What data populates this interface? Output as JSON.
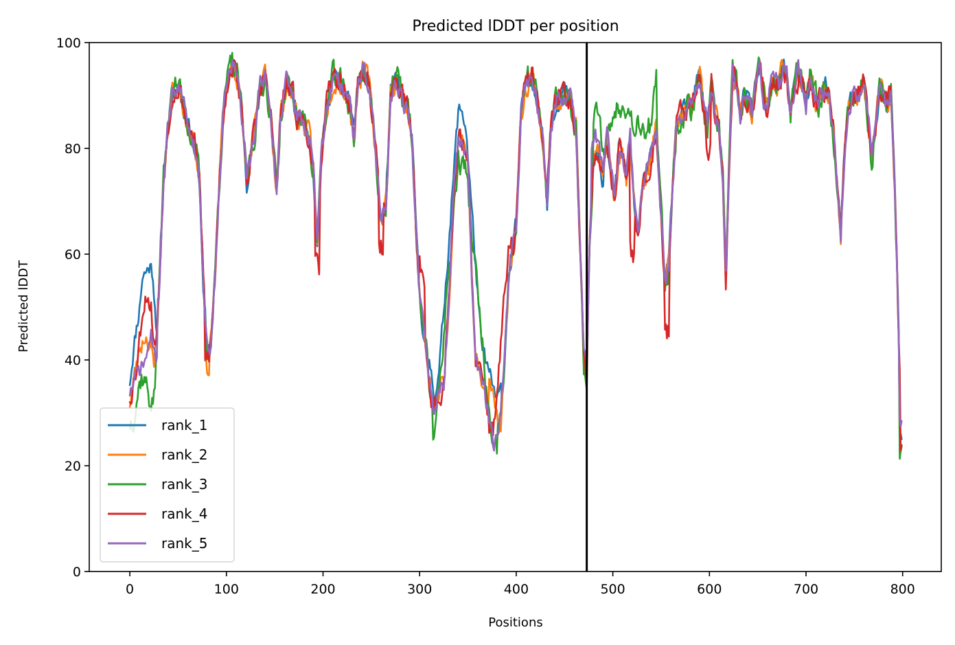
{
  "chart_data": {
    "type": "line",
    "title": "Predicted lDDT per position",
    "xlabel": "Positions",
    "ylabel": "Predicted lDDT",
    "xlim": [
      -42,
      840
    ],
    "ylim": [
      0,
      100
    ],
    "xticks": [
      0,
      100,
      200,
      300,
      400,
      500,
      600,
      700,
      800
    ],
    "yticks": [
      0,
      20,
      40,
      60,
      80,
      100
    ],
    "grid": false,
    "legend_position": "lower-left",
    "vline": {
      "x": 473,
      "color": "#000000"
    },
    "base_profile": [
      [
        0,
        34
      ],
      [
        10,
        40
      ],
      [
        20,
        44
      ],
      [
        25,
        38
      ],
      [
        30,
        52
      ],
      [
        35,
        75
      ],
      [
        40,
        85
      ],
      [
        45,
        92
      ],
      [
        52,
        91
      ],
      [
        58,
        86
      ],
      [
        62,
        84
      ],
      [
        68,
        80
      ],
      [
        72,
        74
      ],
      [
        76,
        55
      ],
      [
        80,
        42
      ],
      [
        84,
        43
      ],
      [
        88,
        55
      ],
      [
        92,
        72
      ],
      [
        96,
        85
      ],
      [
        100,
        92
      ],
      [
        106,
        96
      ],
      [
        112,
        93
      ],
      [
        118,
        82
      ],
      [
        121,
        74
      ],
      [
        126,
        80
      ],
      [
        130,
        84
      ],
      [
        135,
        91
      ],
      [
        140,
        94
      ],
      [
        146,
        86
      ],
      [
        152,
        72
      ],
      [
        156,
        86
      ],
      [
        162,
        92
      ],
      [
        168,
        90
      ],
      [
        174,
        86
      ],
      [
        180,
        85
      ],
      [
        186,
        82
      ],
      [
        190,
        76
      ],
      [
        194,
        62
      ],
      [
        198,
        78
      ],
      [
        204,
        88
      ],
      [
        210,
        93
      ],
      [
        216,
        93
      ],
      [
        222,
        91
      ],
      [
        228,
        88
      ],
      [
        232,
        82
      ],
      [
        236,
        92
      ],
      [
        242,
        95
      ],
      [
        248,
        92
      ],
      [
        252,
        84
      ],
      [
        256,
        76
      ],
      [
        260,
        66
      ],
      [
        265,
        70
      ],
      [
        270,
        90
      ],
      [
        276,
        93
      ],
      [
        282,
        90
      ],
      [
        288,
        87
      ],
      [
        292,
        82
      ],
      [
        296,
        66
      ],
      [
        300,
        52
      ],
      [
        305,
        44
      ],
      [
        310,
        36
      ],
      [
        314,
        30
      ],
      [
        320,
        34
      ],
      [
        325,
        36
      ],
      [
        330,
        50
      ],
      [
        335,
        70
      ],
      [
        340,
        83
      ],
      [
        345,
        82
      ],
      [
        350,
        78
      ],
      [
        354,
        55
      ],
      [
        358,
        40
      ],
      [
        364,
        36
      ],
      [
        368,
        33
      ],
      [
        372,
        29
      ],
      [
        376,
        24
      ],
      [
        380,
        25
      ],
      [
        384,
        30
      ],
      [
        388,
        40
      ],
      [
        392,
        55
      ],
      [
        396,
        60
      ],
      [
        400,
        66
      ],
      [
        405,
        86
      ],
      [
        410,
        92
      ],
      [
        416,
        94
      ],
      [
        420,
        91
      ],
      [
        424,
        86
      ],
      [
        428,
        80
      ],
      [
        432,
        70
      ],
      [
        436,
        84
      ],
      [
        440,
        88
      ],
      [
        445,
        90
      ],
      [
        450,
        91
      ],
      [
        456,
        89
      ],
      [
        462,
        84
      ],
      [
        466,
        62
      ],
      [
        470,
        40
      ],
      [
        473,
        38
      ],
      [
        476,
        62
      ],
      [
        480,
        76
      ],
      [
        486,
        79
      ],
      [
        490,
        76
      ],
      [
        494,
        82
      ],
      [
        498,
        76
      ],
      [
        502,
        70
      ],
      [
        506,
        80
      ],
      [
        510,
        80
      ],
      [
        514,
        74
      ],
      [
        518,
        82
      ],
      [
        522,
        70
      ],
      [
        526,
        64
      ],
      [
        530,
        72
      ],
      [
        536,
        76
      ],
      [
        540,
        79
      ],
      [
        545,
        84
      ],
      [
        550,
        68
      ],
      [
        554,
        54
      ],
      [
        558,
        58
      ],
      [
        562,
        74
      ],
      [
        566,
        85
      ],
      [
        572,
        86
      ],
      [
        578,
        88
      ],
      [
        582,
        87
      ],
      [
        586,
        92
      ],
      [
        590,
        94
      ],
      [
        594,
        88
      ],
      [
        598,
        84
      ],
      [
        602,
        92
      ],
      [
        606,
        86
      ],
      [
        610,
        84
      ],
      [
        614,
        74
      ],
      [
        617,
        56
      ],
      [
        620,
        74
      ],
      [
        624,
        94
      ],
      [
        628,
        92
      ],
      [
        632,
        86
      ],
      [
        636,
        90
      ],
      [
        640,
        89
      ],
      [
        644,
        86
      ],
      [
        648,
        91
      ],
      [
        652,
        95
      ],
      [
        656,
        90
      ],
      [
        660,
        88
      ],
      [
        664,
        92
      ],
      [
        668,
        93
      ],
      [
        672,
        92
      ],
      [
        676,
        95
      ],
      [
        680,
        94
      ],
      [
        684,
        86
      ],
      [
        688,
        92
      ],
      [
        692,
        94
      ],
      [
        696,
        92
      ],
      [
        700,
        88
      ],
      [
        704,
        93
      ],
      [
        708,
        90
      ],
      [
        712,
        88
      ],
      [
        716,
        90
      ],
      [
        720,
        92
      ],
      [
        724,
        90
      ],
      [
        728,
        84
      ],
      [
        732,
        74
      ],
      [
        736,
        64
      ],
      [
        740,
        80
      ],
      [
        744,
        88
      ],
      [
        748,
        90
      ],
      [
        752,
        90
      ],
      [
        756,
        91
      ],
      [
        760,
        93
      ],
      [
        764,
        86
      ],
      [
        768,
        78
      ],
      [
        772,
        84
      ],
      [
        776,
        91
      ],
      [
        780,
        90
      ],
      [
        784,
        88
      ],
      [
        788,
        91
      ],
      [
        792,
        72
      ],
      [
        796,
        44
      ],
      [
        799,
        28
      ]
    ],
    "series": [
      {
        "name": "rank_1",
        "color": "#1f77b4",
        "amp": 1.5,
        "seed": 11,
        "overrides": [
          [
            0,
            36
          ],
          [
            3,
            41
          ],
          [
            6,
            45
          ],
          [
            10,
            50
          ],
          [
            13,
            56
          ],
          [
            18,
            57
          ],
          [
            21,
            58
          ],
          [
            24,
            56
          ],
          [
            27,
            48
          ],
          [
            310,
            40
          ],
          [
            315,
            34
          ],
          [
            320,
            37
          ],
          [
            340,
            87
          ],
          [
            344,
            87
          ],
          [
            348,
            84
          ],
          [
            364,
            42
          ],
          [
            368,
            40
          ],
          [
            380,
            32
          ],
          [
            384,
            34
          ],
          [
            486,
            76
          ],
          [
            490,
            74
          ],
          [
            799,
            26
          ]
        ]
      },
      {
        "name": "rank_2",
        "color": "#ff7f0e",
        "amp": 1.8,
        "seed": 23,
        "overrides": [
          [
            0,
            32
          ],
          [
            10,
            42
          ],
          [
            16,
            45
          ],
          [
            22,
            43
          ],
          [
            78,
            40
          ],
          [
            80,
            37
          ],
          [
            82,
            38
          ],
          [
            372,
            36
          ],
          [
            376,
            33
          ],
          [
            380,
            30
          ],
          [
            384,
            28
          ],
          [
            799,
            24
          ]
        ]
      },
      {
        "name": "rank_3",
        "color": "#2ca02c",
        "amp": 2.2,
        "seed": 37,
        "overrides": [
          [
            0,
            28
          ],
          [
            4,
            30
          ],
          [
            8,
            34
          ],
          [
            12,
            37
          ],
          [
            16,
            36
          ],
          [
            20,
            33
          ],
          [
            24,
            32
          ],
          [
            28,
            40
          ],
          [
            314,
            26
          ],
          [
            318,
            30
          ],
          [
            340,
            78
          ],
          [
            348,
            76
          ],
          [
            376,
            21
          ],
          [
            380,
            22
          ],
          [
            480,
            85
          ],
          [
            484,
            86
          ],
          [
            490,
            80
          ],
          [
            500,
            86
          ],
          [
            506,
            88
          ],
          [
            512,
            90
          ],
          [
            518,
            86
          ],
          [
            540,
            84
          ],
          [
            545,
            92
          ],
          [
            799,
            21
          ]
        ]
      },
      {
        "name": "rank_4",
        "color": "#d62728",
        "amp": 2.0,
        "seed": 53,
        "overrides": [
          [
            0,
            33
          ],
          [
            6,
            38
          ],
          [
            10,
            44
          ],
          [
            14,
            51
          ],
          [
            18,
            53
          ],
          [
            22,
            50
          ],
          [
            26,
            42
          ],
          [
            78,
            40
          ],
          [
            82,
            41
          ],
          [
            194,
            57
          ],
          [
            260,
            61
          ],
          [
            300,
            61
          ],
          [
            305,
            52
          ],
          [
            372,
            28
          ],
          [
            376,
            26
          ],
          [
            392,
            60
          ],
          [
            396,
            62
          ],
          [
            520,
            60
          ],
          [
            556,
            45
          ],
          [
            599,
            80
          ],
          [
            800,
            22
          ]
        ]
      },
      {
        "name": "rank_5",
        "color": "#9467bd",
        "amp": 1.6,
        "seed": 71,
        "overrides": [
          [
            0,
            34
          ],
          [
            10,
            38
          ],
          [
            16,
            40
          ],
          [
            22,
            44
          ],
          [
            28,
            40
          ],
          [
            376,
            23
          ],
          [
            380,
            24
          ],
          [
            478,
            80
          ],
          [
            482,
            82
          ],
          [
            486,
            80
          ],
          [
            799,
            29
          ]
        ]
      }
    ]
  },
  "legend": {
    "items": [
      {
        "label": "rank_1",
        "color": "#1f77b4"
      },
      {
        "label": "rank_2",
        "color": "#ff7f0e"
      },
      {
        "label": "rank_3",
        "color": "#2ca02c"
      },
      {
        "label": "rank_4",
        "color": "#d62728"
      },
      {
        "label": "rank_5",
        "color": "#9467bd"
      }
    ]
  }
}
